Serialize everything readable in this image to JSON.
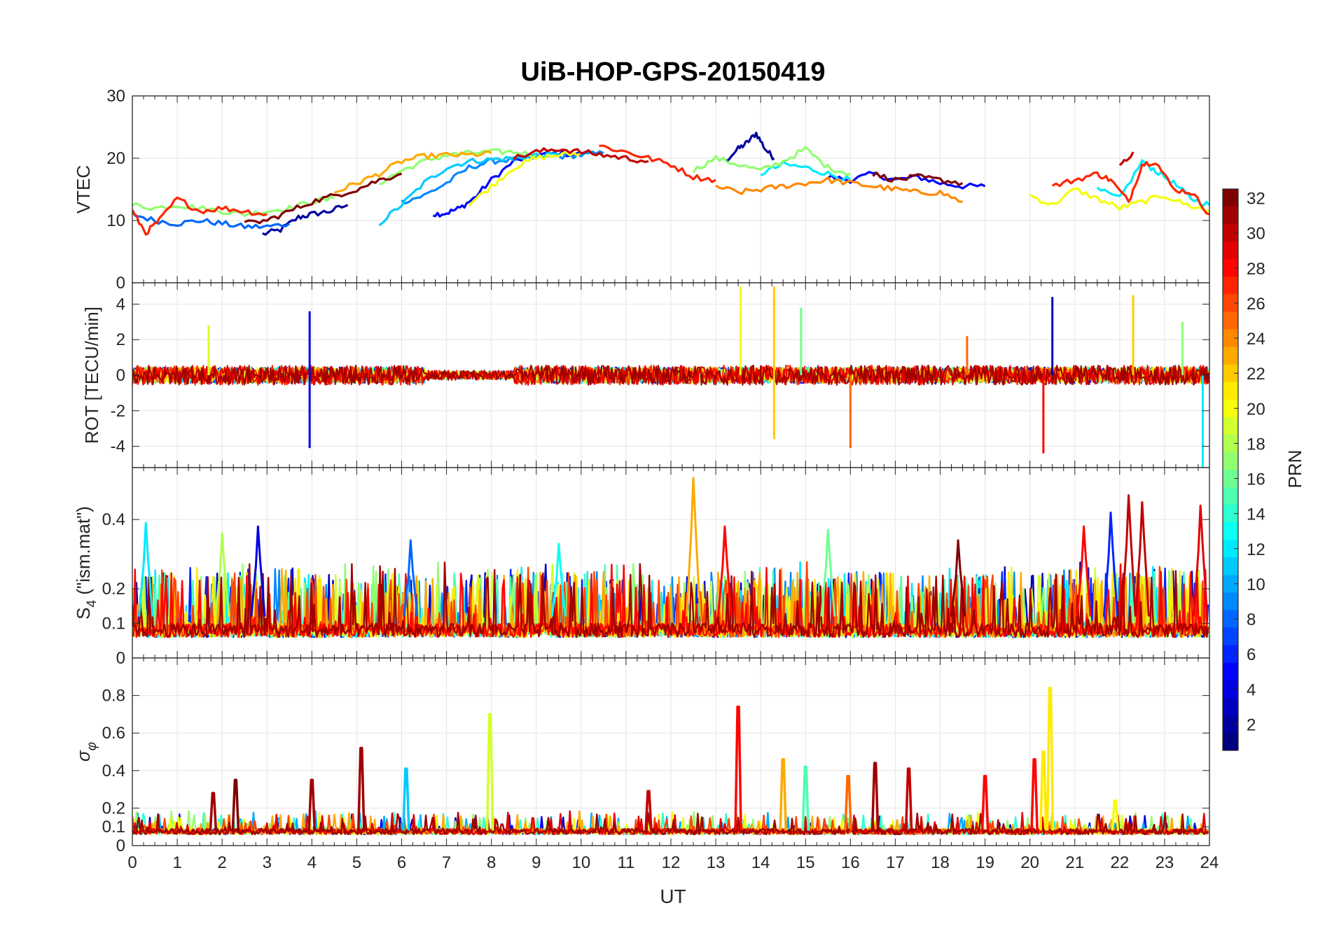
{
  "chart_data": {
    "type": "line",
    "title": "UiB-HOP-GPS-20150419",
    "xlabel": "UT",
    "xlim": [
      0,
      24
    ],
    "xticks": [
      "0",
      "1",
      "2",
      "3",
      "4",
      "5",
      "6",
      "7",
      "8",
      "9",
      "10",
      "11",
      "12",
      "13",
      "14",
      "15",
      "16",
      "17",
      "18",
      "19",
      "20",
      "21",
      "22",
      "23",
      "24"
    ],
    "grid": true,
    "panels": [
      {
        "id": "vtec",
        "ylabel": "VTEC",
        "ylim": [
          0,
          30
        ],
        "yticks": [
          "0",
          "10",
          "20",
          "30"
        ],
        "ytick_values": [
          0,
          10,
          20,
          30
        ],
        "series": [
          {
            "prn": 2,
            "x": [
              2.9,
              3.3,
              3.7,
              4.0,
              4.4,
              4.8
            ],
            "y": [
              7.8,
              8.5,
              10.5,
              11.0,
              11.5,
              12.5
            ]
          },
          {
            "prn": 2,
            "x": [
              13.2,
              13.5,
              13.7,
              13.9,
              14.1,
              14.3
            ],
            "y": [
              19.5,
              21.5,
              22.5,
              24.0,
              21.5,
              20.0
            ]
          },
          {
            "prn": 5,
            "x": [
              6.7,
              7.0,
              7.3,
              7.6,
              8.0,
              8.5,
              9.0,
              9.5,
              10.0
            ],
            "y": [
              11.0,
              11.2,
              12.0,
              13.5,
              16.5,
              19.5,
              20.5,
              20.8,
              20.5
            ]
          },
          {
            "prn": 5,
            "x": [
              15.5,
              16.0,
              16.5,
              17.0,
              17.5,
              18.0,
              18.5,
              19.0
            ],
            "y": [
              17.0,
              16.5,
              17.5,
              16.5,
              17.0,
              16.0,
              15.5,
              15.5
            ]
          },
          {
            "prn": 8,
            "x": [
              0.0,
              0.5,
              1.0,
              1.5,
              2.0,
              2.5,
              3.0,
              3.5
            ],
            "y": [
              11.0,
              10.0,
              9.5,
              10.0,
              9.5,
              9.0,
              9.0,
              9.5
            ]
          },
          {
            "prn": 9,
            "x": [
              6.0,
              6.5,
              7.0,
              7.5,
              8.0,
              8.5,
              9.0,
              9.5,
              10.0,
              10.5
            ],
            "y": [
              13.0,
              14.0,
              16.0,
              18.5,
              19.5,
              19.8,
              20.0,
              20.3,
              20.5,
              20.8
            ]
          },
          {
            "prn": 11,
            "x": [
              5.5,
              6.0,
              6.5,
              7.0,
              7.5,
              8.0,
              8.5,
              9.0,
              9.5
            ],
            "y": [
              9.5,
              12.5,
              16.0,
              18.5,
              19.5,
              19.8,
              20.0,
              20.5,
              20.5
            ]
          },
          {
            "prn": 12,
            "x": [
              14.0,
              14.5,
              15.0,
              15.5,
              16.0
            ],
            "y": [
              17.5,
              19.0,
              18.5,
              17.5,
              16.5
            ]
          },
          {
            "prn": 12,
            "x": [
              21.5,
              22.0,
              22.5,
              22.8,
              23.2,
              23.6,
              24.0
            ],
            "y": [
              15.0,
              13.5,
              19.5,
              18.0,
              16.0,
              13.5,
              12.5
            ]
          },
          {
            "prn": 17,
            "x": [
              0.0,
              0.5,
              1.0,
              1.5,
              2.0,
              2.5,
              3.0,
              3.5,
              4.0,
              4.5
            ],
            "y": [
              12.5,
              12.0,
              12.5,
              12.0,
              11.5,
              11.0,
              11.5,
              12.0,
              13.0,
              13.5
            ]
          },
          {
            "prn": 17,
            "x": [
              5.5,
              6.0,
              6.5,
              7.0,
              7.5,
              8.0,
              8.5,
              9.0
            ],
            "y": [
              16.0,
              18.0,
              19.5,
              20.5,
              20.8,
              21.0,
              21.0,
              20.5
            ]
          },
          {
            "prn": 17,
            "x": [
              12.5,
              13.0,
              13.5,
              14.0,
              14.5,
              15.0,
              15.5,
              16.0
            ],
            "y": [
              18.0,
              20.0,
              19.0,
              18.0,
              19.5,
              21.5,
              18.5,
              17.5
            ]
          },
          {
            "prn": 20,
            "x": [
              7.5,
              8.0,
              8.5,
              9.0,
              9.5,
              10.0
            ],
            "y": [
              12.5,
              15.5,
              18.5,
              20.0,
              20.5,
              20.8
            ]
          },
          {
            "prn": 20,
            "x": [
              20.0,
              20.5,
              21.0,
              21.5,
              22.0,
              22.5,
              23.0,
              23.5,
              24.0
            ],
            "y": [
              14.0,
              12.5,
              15.0,
              13.5,
              12.0,
              13.0,
              14.0,
              12.5,
              11.5
            ]
          },
          {
            "prn": 23,
            "x": [
              4.5,
              5.0,
              5.5,
              6.0,
              6.5,
              7.0,
              7.5,
              8.0
            ],
            "y": [
              14.5,
              16.0,
              17.5,
              19.5,
              20.3,
              20.5,
              20.5,
              20.8
            ]
          },
          {
            "prn": 24,
            "x": [
              13.0,
              13.5,
              14.0,
              14.5,
              15.0,
              15.5,
              16.0,
              16.5,
              17.0,
              17.5,
              18.0,
              18.5
            ],
            "y": [
              15.5,
              14.5,
              15.0,
              15.5,
              16.0,
              16.5,
              16.0,
              15.5,
              15.0,
              14.5,
              14.5,
              13.0
            ]
          },
          {
            "prn": 27,
            "x": [
              0.0,
              0.3,
              0.6,
              1.0,
              1.5,
              2.0,
              2.5,
              3.0
            ],
            "y": [
              11.5,
              8.0,
              10.0,
              13.5,
              11.5,
              12.0,
              11.5,
              11.0
            ]
          },
          {
            "prn": 27,
            "x": [
              10.4,
              11.0,
              11.5,
              12.0,
              12.5,
              13.0
            ],
            "y": [
              22.0,
              21.0,
              20.0,
              19.0,
              17.0,
              16.5
            ]
          },
          {
            "prn": 27,
            "x": [
              20.5,
              21.0,
              21.5,
              21.8,
              22.2,
              22.5,
              22.8,
              23.2,
              23.6,
              24.0
            ],
            "y": [
              15.5,
              16.5,
              17.5,
              16.5,
              13.0,
              19.0,
              19.5,
              15.0,
              14.5,
              11.0
            ]
          },
          {
            "prn": 30,
            "x": [
              8.5,
              9.0,
              9.5,
              10.0,
              10.5,
              11.0,
              11.5
            ],
            "y": [
              20.0,
              21.0,
              21.5,
              21.0,
              20.5,
              20.0,
              19.5
            ]
          },
          {
            "prn": 30,
            "x": [
              22.0,
              22.3
            ],
            "y": [
              18.5,
              21.0
            ]
          },
          {
            "prn": 32,
            "x": [
              2.5,
              3.0,
              3.5,
              4.0,
              4.5,
              5.0,
              5.5,
              6.0
            ],
            "y": [
              9.5,
              10.0,
              11.5,
              13.0,
              14.0,
              15.0,
              16.5,
              17.5
            ]
          },
          {
            "prn": 32,
            "x": [
              16.5,
              17.0,
              17.5,
              18.0,
              18.5
            ],
            "y": [
              17.5,
              16.5,
              17.0,
              16.5,
              16.0
            ]
          }
        ]
      },
      {
        "id": "rot",
        "ylabel": "ROT [TECU/min]",
        "ylim": [
          -5.2,
          5.2
        ],
        "yticks": [
          "-4",
          "-2",
          "0",
          "2",
          "4"
        ],
        "ytick_values": [
          -4,
          -2,
          0,
          2,
          4
        ],
        "spikes": [
          {
            "prn": 20,
            "x": 13.55,
            "y": 5.0
          },
          {
            "prn": 22,
            "x": 14.3,
            "y": 5.0
          },
          {
            "prn": 22,
            "x": 14.3,
            "y": -3.6
          },
          {
            "prn": 4,
            "x": 3.95,
            "y": 3.6
          },
          {
            "prn": 4,
            "x": 3.95,
            "y": -4.1
          },
          {
            "prn": 25,
            "x": 16.0,
            "y": -4.1
          },
          {
            "prn": 28,
            "x": 20.3,
            "y": -4.4
          },
          {
            "prn": 3,
            "x": 20.5,
            "y": 4.4
          },
          {
            "prn": 22,
            "x": 22.3,
            "y": 4.5
          },
          {
            "prn": 12,
            "x": 23.85,
            "y": -5.2
          },
          {
            "prn": 19,
            "x": 1.7,
            "y": 2.8
          },
          {
            "prn": 16,
            "x": 14.9,
            "y": 3.8
          },
          {
            "prn": 25,
            "x": 18.6,
            "y": 2.2
          },
          {
            "prn": 17,
            "x": 23.4,
            "y": 3.0
          }
        ]
      },
      {
        "id": "s4",
        "ylabel": "S4 (\"ism.mat\")",
        "ylabel_main": "S",
        "ylabel_sub": "4",
        "ylabel_rest": " (\"ism.mat\")",
        "ylim": [
          0,
          0.55
        ],
        "yticks": [
          "0",
          "0.1",
          "0.2",
          "0.4"
        ],
        "ytick_values": [
          0,
          0.1,
          0.2,
          0.4
        ],
        "peaks": [
          {
            "prn": 23,
            "x": 12.5,
            "y": 0.52
          },
          {
            "prn": 28,
            "x": 13.2,
            "y": 0.38
          },
          {
            "prn": 30,
            "x": 22.2,
            "y": 0.47
          },
          {
            "prn": 30,
            "x": 22.5,
            "y": 0.45
          },
          {
            "prn": 6,
            "x": 21.8,
            "y": 0.42
          },
          {
            "prn": 29,
            "x": 23.8,
            "y": 0.44
          },
          {
            "prn": 12,
            "x": 0.3,
            "y": 0.39
          },
          {
            "prn": 4,
            "x": 2.8,
            "y": 0.38
          },
          {
            "prn": 13,
            "x": 9.5,
            "y": 0.33
          },
          {
            "prn": 16,
            "x": 15.5,
            "y": 0.37
          },
          {
            "prn": 32,
            "x": 18.4,
            "y": 0.34
          },
          {
            "prn": 8,
            "x": 6.2,
            "y": 0.34
          },
          {
            "prn": 18,
            "x": 2.0,
            "y": 0.36
          },
          {
            "prn": 28,
            "x": 21.2,
            "y": 0.38
          }
        ]
      },
      {
        "id": "sigma",
        "ylabel": "σ_φ",
        "ylabel_main": "σ",
        "ylabel_sub": "φ",
        "ylim": [
          0,
          1.0
        ],
        "yticks": [
          "0",
          "0.1",
          "0.2",
          "0.4",
          "0.6",
          "0.8"
        ],
        "ytick_values": [
          0,
          0.1,
          0.2,
          0.4,
          0.6,
          0.8
        ],
        "peaks": [
          {
            "prn": 19,
            "x": 7.97,
            "y": 0.7
          },
          {
            "prn": 28,
            "x": 13.5,
            "y": 0.74
          },
          {
            "prn": 21,
            "x": 20.45,
            "y": 0.84
          },
          {
            "prn": 31,
            "x": 5.1,
            "y": 0.52
          },
          {
            "prn": 21,
            "x": 20.3,
            "y": 0.5
          },
          {
            "prn": 28,
            "x": 20.1,
            "y": 0.46
          },
          {
            "prn": 31,
            "x": 16.55,
            "y": 0.44
          },
          {
            "prn": 11,
            "x": 6.1,
            "y": 0.41
          },
          {
            "prn": 30,
            "x": 17.3,
            "y": 0.41
          },
          {
            "prn": 15,
            "x": 15.0,
            "y": 0.42
          },
          {
            "prn": 23,
            "x": 14.5,
            "y": 0.46
          },
          {
            "prn": 31,
            "x": 4.0,
            "y": 0.35
          },
          {
            "prn": 32,
            "x": 2.3,
            "y": 0.35
          },
          {
            "prn": 31,
            "x": 1.8,
            "y": 0.28
          },
          {
            "prn": 30,
            "x": 11.5,
            "y": 0.29
          },
          {
            "prn": 28,
            "x": 19.0,
            "y": 0.37
          },
          {
            "prn": 25,
            "x": 15.95,
            "y": 0.37
          },
          {
            "prn": 20,
            "x": 21.9,
            "y": 0.24
          }
        ]
      }
    ],
    "colorbar": {
      "label": "PRN",
      "range": [
        1,
        32
      ],
      "ticks": [
        "2",
        "4",
        "6",
        "8",
        "10",
        "12",
        "14",
        "16",
        "18",
        "20",
        "22",
        "24",
        "26",
        "28",
        "30",
        "32"
      ],
      "tick_values": [
        2,
        4,
        6,
        8,
        10,
        12,
        14,
        16,
        18,
        20,
        22,
        24,
        26,
        28,
        30,
        32
      ],
      "colormap": "jet"
    }
  }
}
